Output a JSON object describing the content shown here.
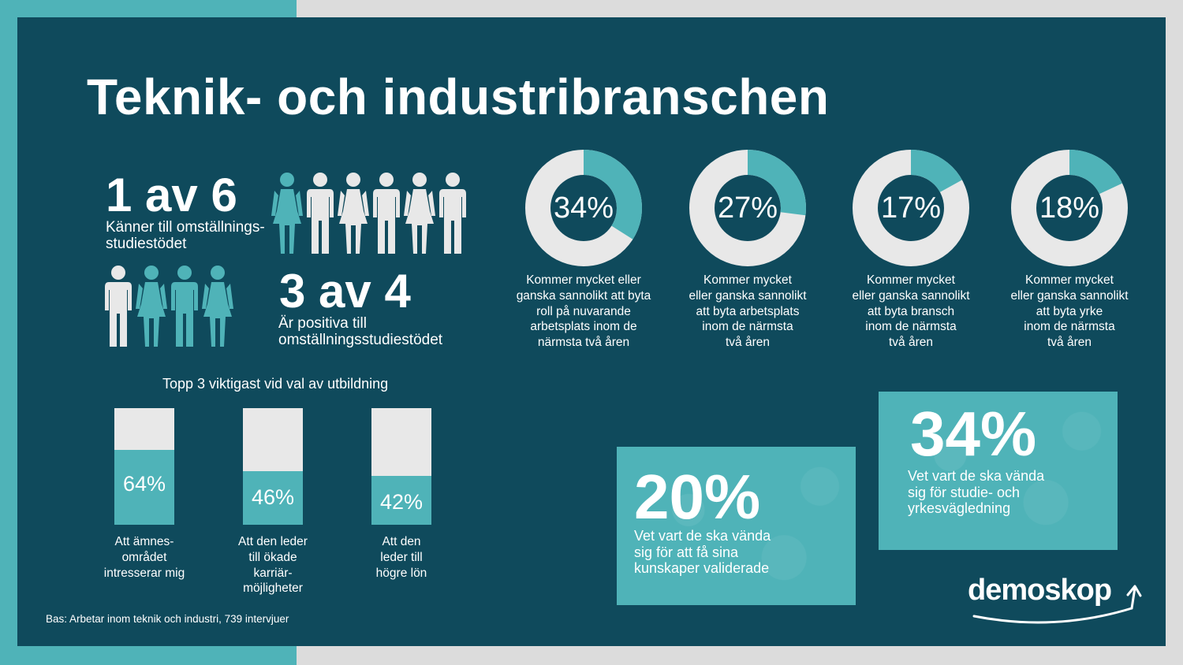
{
  "title": "Teknik- och industribranschen",
  "colors": {
    "panel": "#0f4a5c",
    "accent": "#4fb3b8",
    "light": "#e8e8e8",
    "text": "#ffffff"
  },
  "stat1": {
    "value": "1 av 6",
    "caption_line1": "Känner till omställnings-",
    "caption_line2": "studiestödet",
    "figures": {
      "highlighted": 1,
      "total": 6,
      "icon": "person-icon"
    }
  },
  "stat2": {
    "value": "3 av 4",
    "caption_line1": "Är positiva till",
    "caption_line2": "omställningsstudiestödet",
    "figures": {
      "highlighted": 3,
      "total": 4,
      "icon": "person-icon"
    }
  },
  "donuts": [
    {
      "value": 34,
      "label": "34%",
      "caption": "Kommer mycket eller\nganska sannolikt att byta\nroll på nuvarande\narbetsplats inom de\nnärmsta två åren"
    },
    {
      "value": 27,
      "label": "27%",
      "caption": "Kommer mycket\neller ganska sannolikt\natt byta arbetsplats\ninom de närmsta\ntvå åren"
    },
    {
      "value": 17,
      "label": "17%",
      "caption": "Kommer mycket\neller ganska sannolikt\natt byta bransch\ninom de närmsta\ntvå åren"
    },
    {
      "value": 18,
      "label": "18%",
      "caption": "Kommer mycket\neller ganska sannolikt\natt byta yrke\ninom de närmsta\ntvå åren"
    }
  ],
  "bars": {
    "title": "Topp 3 viktigast vid val av utbildning",
    "items": [
      {
        "value": 64,
        "label": "64%",
        "caption": "Att ämnes-\nområdet\nintresserar mig"
      },
      {
        "value": 46,
        "label": "46%",
        "caption": "Att den leder\ntill ökade\nkarriär-\nmöjligheter"
      },
      {
        "value": 42,
        "label": "42%",
        "caption": "Att den\nleder till\nhögre lön"
      }
    ]
  },
  "cards": [
    {
      "value": "20%",
      "text": "Vet vart de ska vända\nsig för att få sina\nkunskaper validerade"
    },
    {
      "value": "34%",
      "text": "Vet vart de ska vända\nsig för studie- och\nyrkesvägledning"
    }
  ],
  "footer": "Bas: Arbetar inom teknik och industri, 739 intervjuer",
  "logo": {
    "text": "demoskop",
    "icon": "arrow-up-icon"
  }
}
